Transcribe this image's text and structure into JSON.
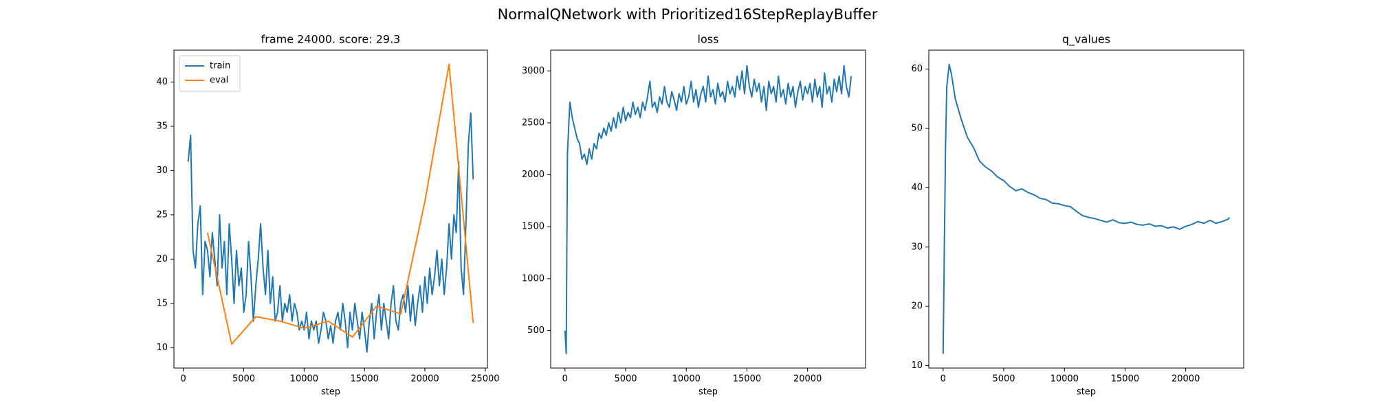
{
  "title": "NormalQNetwork with Prioritized16StepReplayBuffer",
  "chart_data": [
    {
      "type": "line",
      "title": "frame 24000. score: 29.3",
      "xlabel": "step",
      "legend": "upper left",
      "xlim": [
        -780,
        25180
      ],
      "ylim": [
        7.7,
        43.6
      ],
      "xticks": [
        0,
        5000,
        10000,
        15000,
        20000,
        25000
      ],
      "yticks": [
        10,
        15,
        20,
        25,
        30,
        35,
        40
      ],
      "series": [
        {
          "name": "train",
          "color": "#1f77b4",
          "x": [
            400,
            600,
            800,
            1000,
            1200,
            1400,
            1600,
            1800,
            2000,
            2200,
            2400,
            2600,
            2800,
            3000,
            3200,
            3400,
            3600,
            3800,
            4000,
            4200,
            4400,
            4600,
            4800,
            5000,
            5200,
            5400,
            5600,
            5800,
            6000,
            6200,
            6400,
            6600,
            6800,
            7000,
            7200,
            7400,
            7600,
            7800,
            8000,
            8200,
            8400,
            8600,
            8800,
            9000,
            9200,
            9400,
            9600,
            9800,
            10000,
            10200,
            10400,
            10600,
            10800,
            11000,
            11200,
            11400,
            11600,
            11800,
            12000,
            12200,
            12400,
            12600,
            12800,
            13000,
            13200,
            13400,
            13600,
            13800,
            14000,
            14200,
            14400,
            14600,
            14800,
            15000,
            15200,
            15400,
            15600,
            15800,
            16000,
            16200,
            16400,
            16600,
            16800,
            17000,
            17200,
            17400,
            17600,
            17800,
            18000,
            18200,
            18400,
            18600,
            18800,
            19000,
            19200,
            19400,
            19600,
            19800,
            20000,
            20200,
            20400,
            20600,
            20800,
            21000,
            21200,
            21400,
            21600,
            21800,
            22000,
            22200,
            22400,
            22600,
            22800,
            23000,
            23200,
            23400,
            23600,
            23800,
            24000
          ],
          "values": [
            31,
            34,
            21,
            19,
            24,
            26,
            16,
            22,
            21,
            18,
            23,
            20,
            17,
            25,
            19,
            22,
            16,
            24,
            20,
            15,
            21,
            17,
            19,
            14,
            16,
            22,
            18,
            13,
            17,
            20,
            24,
            19,
            16,
            21,
            15,
            18,
            13,
            14,
            17,
            13,
            15,
            14,
            16,
            13,
            15,
            14,
            12,
            13,
            12,
            14,
            11,
            13,
            12,
            13,
            10.5,
            12,
            14,
            13,
            11,
            12.5,
            10.5,
            13,
            14,
            12,
            15,
            13,
            10,
            14,
            12,
            15,
            13,
            11,
            14,
            12,
            9.5,
            13,
            15,
            11,
            14,
            16,
            12,
            15,
            13,
            11,
            15,
            17,
            13,
            12,
            15,
            16,
            14,
            17,
            13,
            16,
            12.5,
            15,
            17,
            14,
            18,
            15,
            19,
            16,
            18,
            21,
            17,
            20,
            16,
            19,
            24,
            20,
            25,
            23,
            31,
            19,
            16,
            24,
            33,
            36.5,
            29
          ]
        },
        {
          "name": "eval",
          "color": "#ff7f0e",
          "x": [
            2000,
            4000,
            6000,
            8000,
            10000,
            12000,
            14000,
            16000,
            18000,
            20000,
            22000,
            24000
          ],
          "values": [
            23,
            10.4,
            13.5,
            13,
            12.2,
            13,
            11.2,
            14.7,
            13.8,
            26.5,
            42,
            12.8
          ]
        }
      ]
    },
    {
      "type": "line",
      "title": "loss",
      "xlabel": "step",
      "xlim": [
        -1180,
        24780
      ],
      "ylim": [
        140,
        3200
      ],
      "xticks": [
        0,
        5000,
        10000,
        15000,
        20000
      ],
      "yticks": [
        500,
        1000,
        1500,
        2000,
        2500,
        3000
      ],
      "series": [
        {
          "color": "#1f77b4",
          "x": [
            0,
            100,
            200,
            400,
            600,
            800,
            1000,
            1200,
            1400,
            1600,
            1800,
            2000,
            2200,
            2400,
            2600,
            2800,
            3000,
            3200,
            3400,
            3600,
            3800,
            4000,
            4200,
            4400,
            4600,
            4800,
            5000,
            5200,
            5400,
            5600,
            5800,
            6000,
            6200,
            6400,
            6600,
            6800,
            7000,
            7200,
            7400,
            7600,
            7800,
            8000,
            8200,
            8400,
            8600,
            8800,
            9000,
            9200,
            9400,
            9600,
            9800,
            10000,
            10200,
            10400,
            10600,
            10800,
            11000,
            11200,
            11400,
            11600,
            11800,
            12000,
            12200,
            12400,
            12600,
            12800,
            13000,
            13200,
            13400,
            13600,
            13800,
            14000,
            14200,
            14400,
            14600,
            14800,
            15000,
            15200,
            15400,
            15600,
            15800,
            16000,
            16200,
            16400,
            16600,
            16800,
            17000,
            17200,
            17400,
            17600,
            17800,
            18000,
            18200,
            18400,
            18600,
            18800,
            19000,
            19200,
            19400,
            19600,
            19800,
            20000,
            20200,
            20400,
            20600,
            20800,
            21000,
            21200,
            21400,
            21600,
            21800,
            22000,
            22200,
            22400,
            22600,
            22800,
            23000,
            23200,
            23400,
            23600
          ],
          "values": [
            500,
            280,
            2200,
            2700,
            2550,
            2450,
            2350,
            2300,
            2150,
            2200,
            2100,
            2250,
            2150,
            2300,
            2250,
            2400,
            2350,
            2450,
            2380,
            2500,
            2420,
            2550,
            2450,
            2600,
            2500,
            2650,
            2520,
            2600,
            2550,
            2700,
            2580,
            2650,
            2550,
            2700,
            2620,
            2750,
            2900,
            2650,
            2700,
            2600,
            2750,
            2680,
            2850,
            2700,
            2650,
            2800,
            2720,
            2620,
            2780,
            2700,
            2850,
            2680,
            2750,
            2900,
            2700,
            2820,
            2650,
            2780,
            2850,
            2700,
            2950,
            2750,
            2820,
            2680,
            2880,
            2750,
            2800,
            2700,
            2900,
            2780,
            2850,
            2750,
            2950,
            2820,
            3000,
            2780,
            3050,
            2850,
            2750,
            2920,
            2800,
            2880,
            2700,
            2850,
            2620,
            2900,
            2780,
            2850,
            2700,
            2950,
            2750,
            2820,
            2680,
            2880,
            2750,
            2850,
            2650,
            2800,
            2900,
            2720,
            2850,
            2780,
            2880,
            2700,
            2920,
            2750,
            2850,
            2650,
            2980,
            2780,
            2850,
            2700,
            2920,
            2800,
            2950,
            2780,
            3050,
            2850,
            2750,
            2950
          ]
        }
      ]
    },
    {
      "type": "line",
      "title": "q_values",
      "xlabel": "step",
      "xlim": [
        -1180,
        24780
      ],
      "ylim": [
        9.6,
        63.2
      ],
      "xticks": [
        0,
        5000,
        10000,
        15000,
        20000
      ],
      "yticks": [
        10,
        20,
        30,
        40,
        50,
        60
      ],
      "series": [
        {
          "color": "#1f77b4",
          "x": [
            0,
            100,
            200,
            300,
            500,
            700,
            1000,
            1500,
            2000,
            2500,
            3000,
            3500,
            4000,
            4500,
            5000,
            5500,
            6000,
            6500,
            7000,
            7500,
            8000,
            8500,
            9000,
            9500,
            10000,
            10500,
            11000,
            11500,
            12000,
            12500,
            13000,
            13500,
            14000,
            14500,
            15000,
            15500,
            16000,
            16500,
            17000,
            17500,
            18000,
            18500,
            19000,
            19500,
            20000,
            20500,
            21000,
            21500,
            22000,
            22500,
            23000,
            23500,
            23600
          ],
          "values": [
            12,
            30,
            47,
            57,
            60.8,
            59,
            55,
            51.5,
            48.5,
            46.8,
            44.5,
            43.5,
            42.8,
            41.8,
            41.2,
            40.2,
            39.5,
            39.8,
            39.2,
            38.8,
            38.2,
            38.0,
            37.4,
            37.3,
            37.0,
            36.8,
            36.0,
            35.3,
            35.0,
            34.8,
            34.5,
            34.2,
            34.6,
            34.1,
            34.0,
            34.2,
            33.8,
            33.7,
            33.9,
            33.5,
            33.6,
            33.2,
            33.4,
            33.0,
            33.5,
            33.8,
            34.3,
            34.0,
            34.5,
            34.0,
            34.3,
            34.7,
            35
          ]
        }
      ]
    }
  ]
}
